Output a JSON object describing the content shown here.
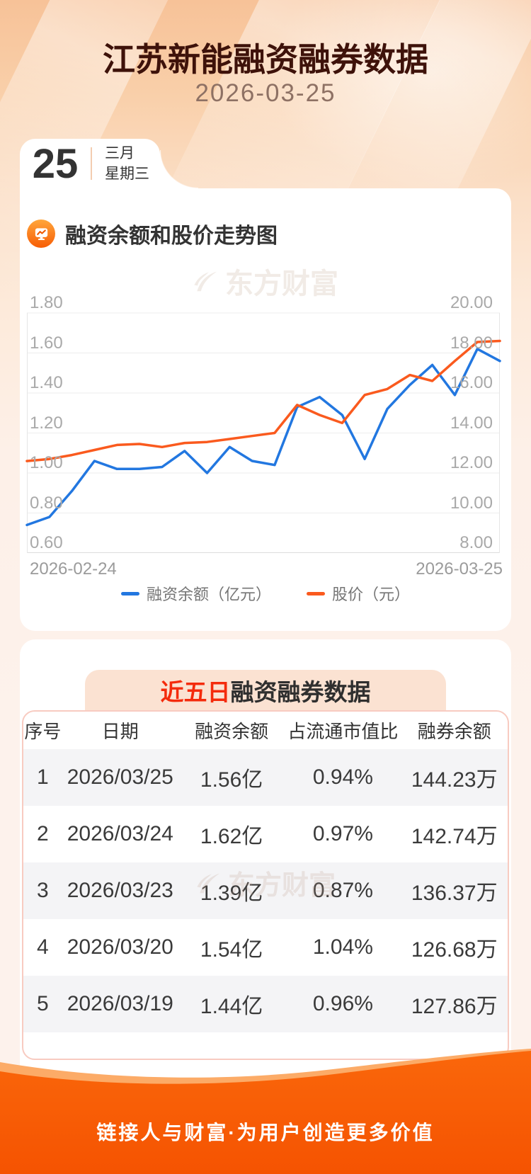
{
  "page": {
    "title": "江苏新能融资融券数据",
    "date": "2026-03-25"
  },
  "calendar": {
    "day": "25",
    "month": "三月",
    "weekday": "星期三"
  },
  "watermark": {
    "text": "东方财富"
  },
  "theme": {
    "title_brown": "#3e120a",
    "accent_orange": "#f75d05",
    "highlight_red": "#f42b0c",
    "banner_bg": "#fbe2d2",
    "table_border_pink": "#f8cbc1",
    "row_alt_gray": "#f4f4f6",
    "footer_orange": "#f75a07",
    "axis_label_gray": "#a9a9a9"
  },
  "chart_data": {
    "type": "line",
    "title": "融资余额和股价走势图",
    "x_labels": [
      "2026-02-24",
      "2026-03-25"
    ],
    "num_points": 22,
    "grid": true,
    "legend_position": "bottom",
    "left_axis": {
      "min": 0.6,
      "max": 1.8,
      "ticks": [
        "1.80",
        "1.60",
        "1.40",
        "1.20",
        "1.00",
        "0.80",
        "0.60"
      ]
    },
    "right_axis": {
      "min": 8,
      "max": 20,
      "ticks": [
        "20.00",
        "18.00",
        "16.00",
        "14.00",
        "12.00",
        "10.00",
        "8.00"
      ]
    },
    "series": [
      {
        "name": "融资余额（亿元）",
        "axis": "left",
        "color": "#2277e0",
        "values": [
          0.74,
          0.78,
          0.91,
          1.06,
          1.02,
          1.02,
          1.03,
          1.11,
          1.0,
          1.13,
          1.06,
          1.04,
          1.33,
          1.38,
          1.29,
          1.07,
          1.32,
          1.44,
          1.54,
          1.39,
          1.62,
          1.56
        ]
      },
      {
        "name": "股价（元）",
        "axis": "right",
        "color": "#fa5a1e",
        "values": [
          12.6,
          12.7,
          12.9,
          13.15,
          13.4,
          13.45,
          13.3,
          13.5,
          13.55,
          13.7,
          13.85,
          14.0,
          15.4,
          14.9,
          14.5,
          15.9,
          16.2,
          16.9,
          16.6,
          17.6,
          18.55,
          18.6
        ]
      }
    ]
  },
  "table_section": {
    "title_highlight": "近五日",
    "title_rest": "融资融券数据",
    "columns": [
      "序号",
      "日期",
      "融资余额",
      "占流通市值比",
      "融券余额"
    ],
    "rows": [
      [
        "1",
        "2026/03/25",
        "1.56亿",
        "0.94%",
        "144.23万"
      ],
      [
        "2",
        "2026/03/24",
        "1.62亿",
        "0.97%",
        "142.74万"
      ],
      [
        "3",
        "2026/03/23",
        "1.39亿",
        "0.87%",
        "136.37万"
      ],
      [
        "4",
        "2026/03/20",
        "1.54亿",
        "1.04%",
        "126.68万"
      ],
      [
        "5",
        "2026/03/19",
        "1.44亿",
        "0.96%",
        "127.86万"
      ]
    ]
  },
  "footer": {
    "slogan": "链接人与财富·为用户创造更多价值"
  }
}
